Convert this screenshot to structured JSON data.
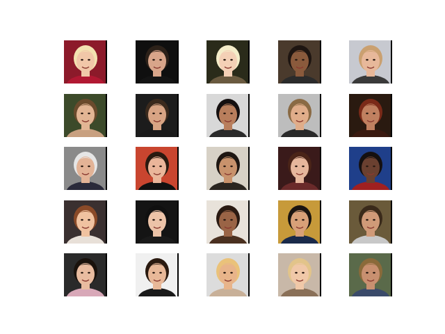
{
  "grid": {
    "rows": 5,
    "cols": 5,
    "tiles": [
      {
        "name": "face-photo-1-1",
        "bg": "#8c1a2a",
        "skin": "#f1c7a8",
        "hair": "#f3e2b0",
        "shirt": "#b11832"
      },
      {
        "name": "face-photo-1-2",
        "bg": "#0f0f0f",
        "skin": "#d8a58a",
        "hair": "#2c2119",
        "shirt": "#141414"
      },
      {
        "name": "face-photo-1-3",
        "bg": "#2a2b1a",
        "skin": "#f4d0b6",
        "hair": "#f4edc9",
        "shirt": "#6a5a40"
      },
      {
        "name": "face-photo-1-4",
        "bg": "#4a3a2c",
        "skin": "#8a5a3c",
        "hair": "#1e1511",
        "shirt": "#2b2b2b"
      },
      {
        "name": "face-photo-1-5",
        "bg": "#c7c9d0",
        "skin": "#e7b89a",
        "hair": "#caa070",
        "shirt": "#3a3a3a"
      },
      {
        "name": "face-photo-2-1",
        "bg": "#3c4a2a",
        "skin": "#e2b594",
        "hair": "#6a4a2c",
        "shirt": "#c8a080"
      },
      {
        "name": "face-photo-2-2",
        "bg": "#1c1c1c",
        "skin": "#d8a484",
        "hair": "#3b2a1d",
        "shirt": "#1a1a1a"
      },
      {
        "name": "face-photo-2-3",
        "bg": "#d8d8d8",
        "skin": "#b87e5c",
        "hair": "#151010",
        "shirt": "#2a2a2a"
      },
      {
        "name": "face-photo-2-4",
        "bg": "#bdbdbd",
        "skin": "#e0ad8a",
        "hair": "#8a6a44",
        "shirt": "#2a2a2a"
      },
      {
        "name": "face-photo-2-5",
        "bg": "#2a1a10",
        "skin": "#c08060",
        "hair": "#7a2a18",
        "shirt": "#3a1a10"
      },
      {
        "name": "face-photo-3-1",
        "bg": "#8a8a8a",
        "skin": "#e3b396",
        "hair": "#e6e6e6",
        "shirt": "#2a2a3a"
      },
      {
        "name": "face-photo-3-2",
        "bg": "#c9452f",
        "skin": "#eab59a",
        "hair": "#2a1a10",
        "shirt": "#111111"
      },
      {
        "name": "face-photo-3-3",
        "bg": "#d7d1c6",
        "skin": "#c8926c",
        "hair": "#1e1612",
        "shirt": "#2a2520"
      },
      {
        "name": "face-photo-3-4",
        "bg": "#3a1a1a",
        "skin": "#e6b69c",
        "hair": "#4a2418",
        "shirt": "#6a2a2a"
      },
      {
        "name": "face-photo-3-5",
        "bg": "#1f3f8a",
        "skin": "#6a4030",
        "hair": "#151010",
        "shirt": "#a02020"
      },
      {
        "name": "face-photo-4-1",
        "bg": "#3a3030",
        "skin": "#f0c2a0",
        "hair": "#8a4a28",
        "shirt": "#e8e0d8"
      },
      {
        "name": "face-photo-4-2",
        "bg": "#141414",
        "skin": "#ecc3a8",
        "hair": "#101010",
        "shirt": "#1a1a1a"
      },
      {
        "name": "face-photo-4-3",
        "bg": "#e8e2da",
        "skin": "#9a6446",
        "hair": "#2a1a12",
        "shirt": "#4a3020"
      },
      {
        "name": "face-photo-4-4",
        "bg": "#c79a3a",
        "skin": "#d8a078",
        "hair": "#1a1410",
        "shirt": "#1a2a4a"
      },
      {
        "name": "face-photo-4-5",
        "bg": "#6a5a3a",
        "skin": "#d09a78",
        "hair": "#3a2a1a",
        "shirt": "#c8c8c8"
      },
      {
        "name": "face-photo-5-1",
        "bg": "#2a2a2a",
        "skin": "#e9bca0",
        "hair": "#1a120c",
        "shirt": "#d8a8b8"
      },
      {
        "name": "face-photo-5-2",
        "bg": "#f0f0f0",
        "skin": "#e8b898",
        "hair": "#2a1a10",
        "shirt": "#1a1a1a"
      },
      {
        "name": "face-photo-5-3",
        "bg": "#dcdcdc",
        "skin": "#e8b48a",
        "hair": "#eac27a",
        "shirt": "#c8b098"
      },
      {
        "name": "face-photo-5-4",
        "bg": "#c8b8a8",
        "skin": "#f0c8a8",
        "hair": "#e2c48a",
        "shirt": "#8a7058"
      },
      {
        "name": "face-photo-5-5",
        "bg": "#5a6a4a",
        "skin": "#c89070",
        "hair": "#8a6a3a",
        "shirt": "#3a4a6a"
      }
    ]
  }
}
